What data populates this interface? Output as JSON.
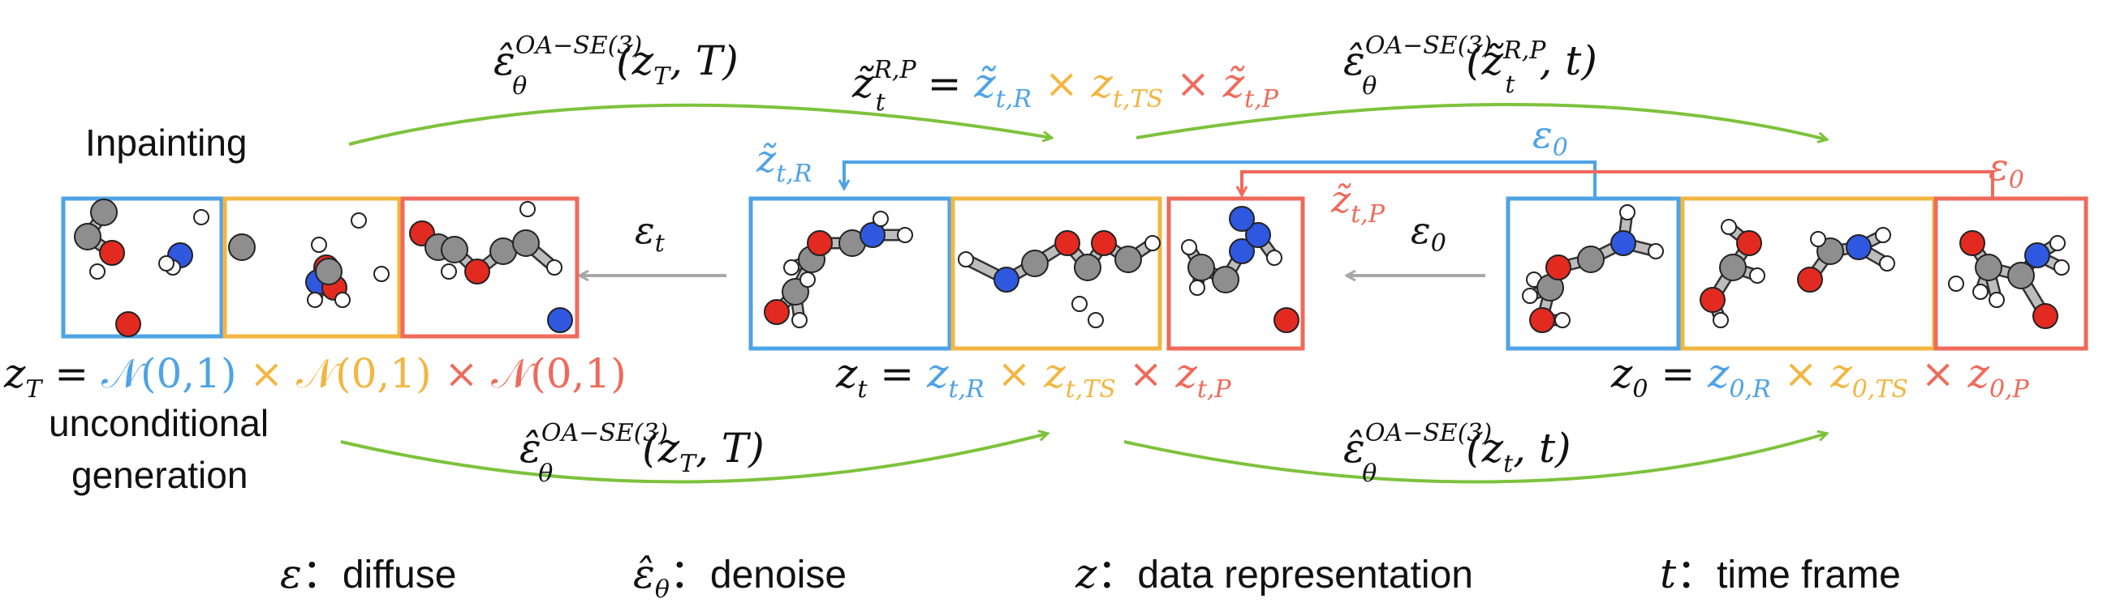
{
  "colors": {
    "reactant": "#4ea3e6",
    "ts": "#f2b640",
    "product": "#ef6a5a",
    "arrow_green": "#7dc23c",
    "arrow_gray": "#a8a8a8",
    "text": "#111111",
    "carbon": "#8e8e8e",
    "oxygen": "#e32a20",
    "nitrogen": "#2f58e0",
    "hydrogen": "#ffffff"
  },
  "labels": {
    "inpainting": "Inpainting",
    "unconditional_1": "unconditional",
    "unconditional_2": "generation",
    "eps_t": "ε",
    "eps_t_sub": "t",
    "eps_0": "ε",
    "eps_0_sub": "0"
  },
  "formulas": {
    "top_left_arrow": {
      "hat": "ε̂",
      "theta": "θ",
      "sup": "OA−SE(3)",
      "args": "(z",
      "args_sub": "T",
      "args_end": ", T)"
    },
    "top_right_arrow": {
      "hat": "ε̂",
      "theta": "θ",
      "sup": "OA−SE(3)",
      "args": "(z̃",
      "args_sup": "R,P",
      "args_sub": "t",
      "args_end": ", t)"
    },
    "bottom_left_arrow": {
      "hat": "ε̂",
      "theta": "θ",
      "sup": "OA−SE(3)",
      "args": "(z",
      "args_sub": "T",
      "args_end": ", T)"
    },
    "bottom_right_arrow": {
      "hat": "ε̂",
      "theta": "θ",
      "sup": "OA−SE(3)",
      "args": "(z",
      "args_sub": "t",
      "args_end": ", t)"
    },
    "ztilde_eq": {
      "lhs": "z̃",
      "lhs_sup": "R,P",
      "lhs_sub": "t",
      "eq": " = ",
      "r": "z̃",
      "r_sub": "t,R",
      "times": " × ",
      "ts": "z",
      "ts_sub": "t,TS",
      "p": "z̃",
      "p_sub": "t,P"
    },
    "ztilde_R_label": {
      "z": "z̃",
      "sub": "t,R"
    },
    "ztilde_P_label": {
      "z": "z̃",
      "sub": "t,P"
    },
    "zT_eq": {
      "lhs": "z",
      "lhs_sub": "T",
      "eq": " = ",
      "r": "𝒩(0,1)",
      "times": " × ",
      "ts": "𝒩(0,1)",
      "p": "𝒩(0,1)"
    },
    "zt_eq": {
      "lhs": "z",
      "lhs_sub": "t",
      "eq": " = ",
      "r": "z",
      "r_sub": "t,R",
      "times": " × ",
      "ts": "z",
      "ts_sub": "t,TS",
      "p": "z",
      "p_sub": "t,P"
    },
    "z0_eq": {
      "lhs": "z",
      "lhs_sub": "0",
      "eq": " = ",
      "r": "z",
      "r_sub": "0,R",
      "times": " × ",
      "ts": "z",
      "ts_sub": "0,TS",
      "p": "z",
      "p_sub": "0,P"
    }
  },
  "legend": [
    {
      "sym": "ε",
      "sym_sub": "",
      "colon": "：",
      "text": "diffuse"
    },
    {
      "sym": "ε̂",
      "sym_sub": "θ",
      "colon": "：",
      "text": "denoise"
    },
    {
      "sym": "z",
      "sym_sub": "",
      "colon": "：",
      "text": "data representation"
    },
    {
      "sym": "t",
      "sym_sub": "",
      "colon": "：",
      "text": "time frame"
    }
  ]
}
